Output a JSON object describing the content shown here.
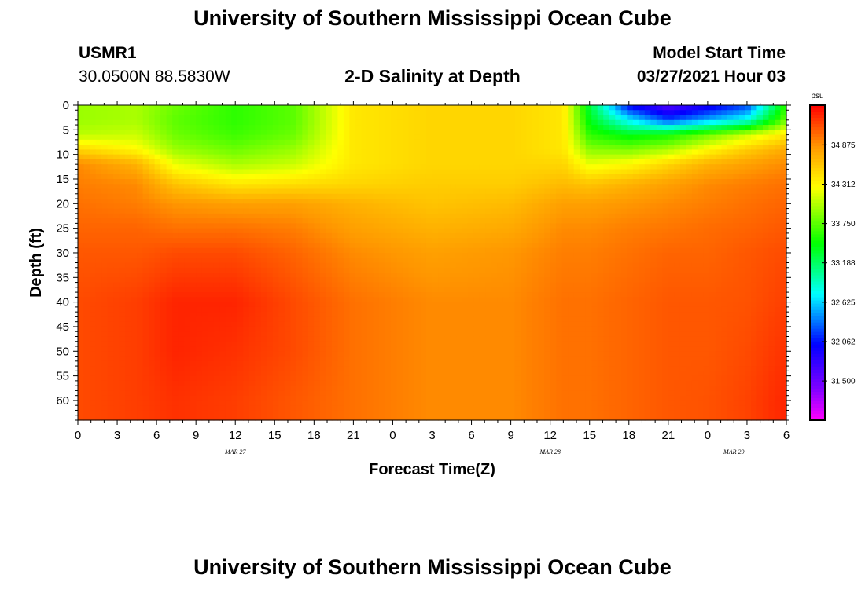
{
  "header": {
    "title": "University of Southern Mississippi Ocean Cube",
    "station_id": "USMR1",
    "station_coords": "30.0500N  88.5830W",
    "plot_title": "2-D Salinity at Depth",
    "model_label": "Model Start Time",
    "model_time": "03/27/2021 Hour 03"
  },
  "footer": {
    "title": "University of Southern Mississippi Ocean Cube"
  },
  "chart_data": {
    "type": "heatmap",
    "title": "2-D Salinity at Depth",
    "xlabel": "Forecast Time(Z)",
    "ylabel": "Depth (ft)",
    "units": "psu",
    "x_ticks": [
      "0",
      "3",
      "6",
      "9",
      "12",
      "15",
      "18",
      "21",
      "0",
      "3",
      "6",
      "9",
      "12",
      "15",
      "18",
      "21",
      "0",
      "3",
      "6"
    ],
    "x_hours": [
      0,
      3,
      6,
      9,
      12,
      15,
      18,
      21,
      24,
      27,
      30,
      33,
      36,
      39,
      42,
      45,
      48,
      51,
      54
    ],
    "x_range_hours": [
      0,
      54
    ],
    "date_labels": [
      {
        "label": "MAR 27",
        "hour": 12
      },
      {
        "label": "MAR 28",
        "hour": 36
      },
      {
        "label": "MAR 29",
        "hour": 50
      }
    ],
    "y_ticks": [
      0,
      5,
      10,
      15,
      20,
      25,
      30,
      35,
      40,
      45,
      50,
      55,
      60
    ],
    "y_range_ft": [
      0,
      64
    ],
    "colorbar": {
      "label": "psu",
      "range": [
        30.94,
        35.44
      ],
      "ticks": [
        "34.875",
        "34.312",
        "33.750",
        "33.188",
        "32.625",
        "32.062",
        "31.500"
      ],
      "tick_values": [
        34.875,
        34.312,
        33.75,
        33.188,
        32.625,
        32.062,
        31.5
      ]
    },
    "hours": [
      0,
      4.5,
      7.5,
      12,
      16.5,
      21,
      27,
      33,
      37,
      39,
      42,
      45,
      48,
      51,
      54
    ],
    "depths": [
      0,
      3,
      6,
      9,
      12,
      16,
      20,
      25,
      30,
      40,
      50,
      60,
      64
    ],
    "salinity": [
      [
        33.95,
        34.0,
        33.8,
        33.6,
        33.75,
        34.4,
        34.5,
        34.5,
        34.4,
        33.3,
        32.0,
        31.6,
        31.9,
        32.2,
        33.6
      ],
      [
        33.95,
        34.0,
        33.75,
        33.6,
        33.75,
        34.4,
        34.5,
        34.5,
        34.4,
        33.4,
        32.7,
        32.2,
        32.5,
        32.8,
        33.8
      ],
      [
        34.05,
        34.1,
        33.8,
        33.65,
        33.8,
        34.4,
        34.5,
        34.5,
        34.4,
        33.6,
        33.4,
        33.5,
        33.8,
        34.1,
        34.4
      ],
      [
        34.5,
        34.3,
        33.95,
        33.8,
        33.95,
        34.4,
        34.5,
        34.5,
        34.4,
        33.9,
        33.85,
        34.0,
        34.3,
        34.55,
        34.75
      ],
      [
        34.9,
        34.7,
        34.2,
        34.0,
        34.1,
        34.4,
        34.5,
        34.5,
        34.5,
        34.2,
        34.3,
        34.5,
        34.7,
        34.8,
        34.9
      ],
      [
        34.95,
        34.9,
        34.6,
        34.4,
        34.45,
        34.5,
        34.55,
        34.55,
        34.65,
        34.6,
        34.7,
        34.8,
        34.9,
        34.95,
        35.0
      ],
      [
        35.0,
        34.95,
        34.85,
        34.8,
        34.8,
        34.7,
        34.6,
        34.65,
        34.8,
        34.8,
        34.85,
        34.9,
        34.95,
        35.0,
        35.05
      ],
      [
        35.05,
        35.05,
        35.0,
        35.0,
        34.95,
        34.8,
        34.7,
        34.75,
        34.9,
        34.9,
        34.95,
        34.98,
        35.02,
        35.05,
        35.1
      ],
      [
        35.1,
        35.1,
        35.15,
        35.15,
        35.05,
        34.9,
        34.8,
        34.85,
        34.95,
        34.95,
        35.0,
        35.05,
        35.05,
        35.1,
        35.15
      ],
      [
        35.15,
        35.2,
        35.3,
        35.3,
        35.15,
        35.0,
        34.9,
        34.9,
        35.0,
        35.0,
        35.05,
        35.1,
        35.1,
        35.12,
        35.2
      ],
      [
        35.15,
        35.2,
        35.3,
        35.25,
        35.15,
        35.0,
        34.9,
        34.9,
        35.0,
        35.0,
        35.05,
        35.1,
        35.1,
        35.15,
        35.25
      ],
      [
        35.15,
        35.2,
        35.25,
        35.2,
        35.1,
        35.0,
        34.9,
        34.9,
        35.0,
        35.0,
        35.05,
        35.1,
        35.12,
        35.18,
        35.3
      ],
      [
        35.15,
        35.2,
        35.25,
        35.2,
        35.1,
        35.0,
        34.9,
        34.9,
        35.0,
        35.0,
        35.05,
        35.1,
        35.12,
        35.18,
        35.3
      ]
    ]
  }
}
